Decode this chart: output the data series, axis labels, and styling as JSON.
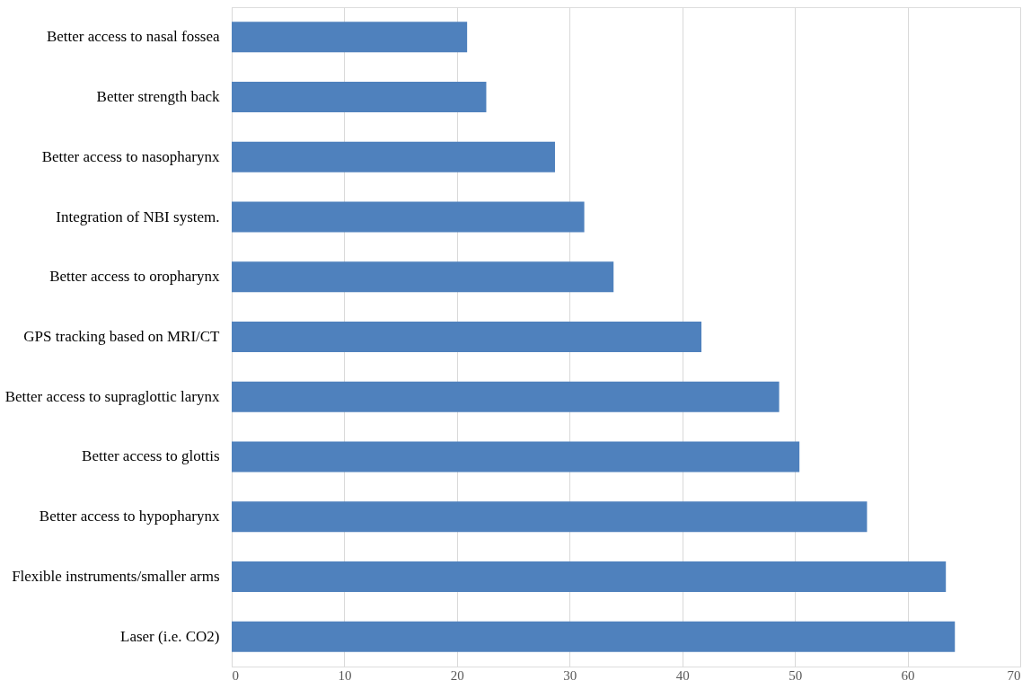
{
  "chart_data": {
    "type": "bar",
    "orientation": "horizontal",
    "categories": [
      "Better access to nasal fossea",
      "Better strength back",
      "Better access to nasopharynx",
      "Integration of NBI system.",
      "Better  access to oropharynx",
      "GPS tracking based on MRI/CT",
      "Better access to supraglottic larynx",
      "Better access to glottis",
      "Better access to hypopharynx",
      "Flexible instruments/smaller arms",
      "Laser (i.e. CO2)"
    ],
    "values": [
      20.9,
      22.6,
      28.7,
      31.3,
      33.9,
      41.7,
      48.6,
      50.4,
      56.4,
      63.4,
      64.2
    ],
    "color": "#4f81bd",
    "xlim": [
      0,
      70
    ],
    "xticks": [
      0,
      10,
      20,
      30,
      40,
      50,
      60,
      70
    ],
    "grid": "x"
  }
}
